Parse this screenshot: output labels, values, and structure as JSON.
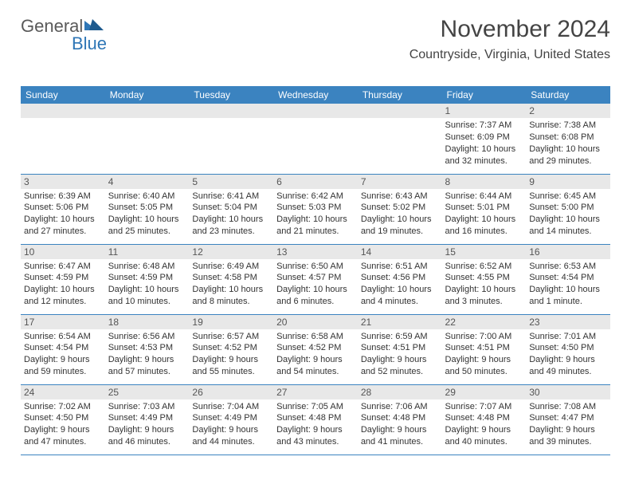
{
  "brand": {
    "part1": "General",
    "part2": "Blue"
  },
  "title": "November 2024",
  "location": "Countryside, Virginia, United States",
  "colors": {
    "header_bg": "#3b83c0",
    "header_text": "#ffffff",
    "daynum_bg": "#e8e8e8",
    "daynum_text": "#555555",
    "body_text": "#333333",
    "rule": "#3b83c0",
    "brand_gray": "#5a5a5a",
    "brand_blue": "#2e76b6"
  },
  "typography": {
    "title_fontsize": 30,
    "location_fontsize": 16,
    "dayheader_fontsize": 12,
    "daynum_fontsize": 12,
    "body_fontsize": 11
  },
  "day_names": [
    "Sunday",
    "Monday",
    "Tuesday",
    "Wednesday",
    "Thursday",
    "Friday",
    "Saturday"
  ],
  "weeks": [
    [
      null,
      null,
      null,
      null,
      null,
      {
        "n": "1",
        "sunrise": "Sunrise: 7:37 AM",
        "sunset": "Sunset: 6:09 PM",
        "daylight": "Daylight: 10 hours and 32 minutes."
      },
      {
        "n": "2",
        "sunrise": "Sunrise: 7:38 AM",
        "sunset": "Sunset: 6:08 PM",
        "daylight": "Daylight: 10 hours and 29 minutes."
      }
    ],
    [
      {
        "n": "3",
        "sunrise": "Sunrise: 6:39 AM",
        "sunset": "Sunset: 5:06 PM",
        "daylight": "Daylight: 10 hours and 27 minutes."
      },
      {
        "n": "4",
        "sunrise": "Sunrise: 6:40 AM",
        "sunset": "Sunset: 5:05 PM",
        "daylight": "Daylight: 10 hours and 25 minutes."
      },
      {
        "n": "5",
        "sunrise": "Sunrise: 6:41 AM",
        "sunset": "Sunset: 5:04 PM",
        "daylight": "Daylight: 10 hours and 23 minutes."
      },
      {
        "n": "6",
        "sunrise": "Sunrise: 6:42 AM",
        "sunset": "Sunset: 5:03 PM",
        "daylight": "Daylight: 10 hours and 21 minutes."
      },
      {
        "n": "7",
        "sunrise": "Sunrise: 6:43 AM",
        "sunset": "Sunset: 5:02 PM",
        "daylight": "Daylight: 10 hours and 19 minutes."
      },
      {
        "n": "8",
        "sunrise": "Sunrise: 6:44 AM",
        "sunset": "Sunset: 5:01 PM",
        "daylight": "Daylight: 10 hours and 16 minutes."
      },
      {
        "n": "9",
        "sunrise": "Sunrise: 6:45 AM",
        "sunset": "Sunset: 5:00 PM",
        "daylight": "Daylight: 10 hours and 14 minutes."
      }
    ],
    [
      {
        "n": "10",
        "sunrise": "Sunrise: 6:47 AM",
        "sunset": "Sunset: 4:59 PM",
        "daylight": "Daylight: 10 hours and 12 minutes."
      },
      {
        "n": "11",
        "sunrise": "Sunrise: 6:48 AM",
        "sunset": "Sunset: 4:59 PM",
        "daylight": "Daylight: 10 hours and 10 minutes."
      },
      {
        "n": "12",
        "sunrise": "Sunrise: 6:49 AM",
        "sunset": "Sunset: 4:58 PM",
        "daylight": "Daylight: 10 hours and 8 minutes."
      },
      {
        "n": "13",
        "sunrise": "Sunrise: 6:50 AM",
        "sunset": "Sunset: 4:57 PM",
        "daylight": "Daylight: 10 hours and 6 minutes."
      },
      {
        "n": "14",
        "sunrise": "Sunrise: 6:51 AM",
        "sunset": "Sunset: 4:56 PM",
        "daylight": "Daylight: 10 hours and 4 minutes."
      },
      {
        "n": "15",
        "sunrise": "Sunrise: 6:52 AM",
        "sunset": "Sunset: 4:55 PM",
        "daylight": "Daylight: 10 hours and 3 minutes."
      },
      {
        "n": "16",
        "sunrise": "Sunrise: 6:53 AM",
        "sunset": "Sunset: 4:54 PM",
        "daylight": "Daylight: 10 hours and 1 minute."
      }
    ],
    [
      {
        "n": "17",
        "sunrise": "Sunrise: 6:54 AM",
        "sunset": "Sunset: 4:54 PM",
        "daylight": "Daylight: 9 hours and 59 minutes."
      },
      {
        "n": "18",
        "sunrise": "Sunrise: 6:56 AM",
        "sunset": "Sunset: 4:53 PM",
        "daylight": "Daylight: 9 hours and 57 minutes."
      },
      {
        "n": "19",
        "sunrise": "Sunrise: 6:57 AM",
        "sunset": "Sunset: 4:52 PM",
        "daylight": "Daylight: 9 hours and 55 minutes."
      },
      {
        "n": "20",
        "sunrise": "Sunrise: 6:58 AM",
        "sunset": "Sunset: 4:52 PM",
        "daylight": "Daylight: 9 hours and 54 minutes."
      },
      {
        "n": "21",
        "sunrise": "Sunrise: 6:59 AM",
        "sunset": "Sunset: 4:51 PM",
        "daylight": "Daylight: 9 hours and 52 minutes."
      },
      {
        "n": "22",
        "sunrise": "Sunrise: 7:00 AM",
        "sunset": "Sunset: 4:51 PM",
        "daylight": "Daylight: 9 hours and 50 minutes."
      },
      {
        "n": "23",
        "sunrise": "Sunrise: 7:01 AM",
        "sunset": "Sunset: 4:50 PM",
        "daylight": "Daylight: 9 hours and 49 minutes."
      }
    ],
    [
      {
        "n": "24",
        "sunrise": "Sunrise: 7:02 AM",
        "sunset": "Sunset: 4:50 PM",
        "daylight": "Daylight: 9 hours and 47 minutes."
      },
      {
        "n": "25",
        "sunrise": "Sunrise: 7:03 AM",
        "sunset": "Sunset: 4:49 PM",
        "daylight": "Daylight: 9 hours and 46 minutes."
      },
      {
        "n": "26",
        "sunrise": "Sunrise: 7:04 AM",
        "sunset": "Sunset: 4:49 PM",
        "daylight": "Daylight: 9 hours and 44 minutes."
      },
      {
        "n": "27",
        "sunrise": "Sunrise: 7:05 AM",
        "sunset": "Sunset: 4:48 PM",
        "daylight": "Daylight: 9 hours and 43 minutes."
      },
      {
        "n": "28",
        "sunrise": "Sunrise: 7:06 AM",
        "sunset": "Sunset: 4:48 PM",
        "daylight": "Daylight: 9 hours and 41 minutes."
      },
      {
        "n": "29",
        "sunrise": "Sunrise: 7:07 AM",
        "sunset": "Sunset: 4:48 PM",
        "daylight": "Daylight: 9 hours and 40 minutes."
      },
      {
        "n": "30",
        "sunrise": "Sunrise: 7:08 AM",
        "sunset": "Sunset: 4:47 PM",
        "daylight": "Daylight: 9 hours and 39 minutes."
      }
    ]
  ]
}
